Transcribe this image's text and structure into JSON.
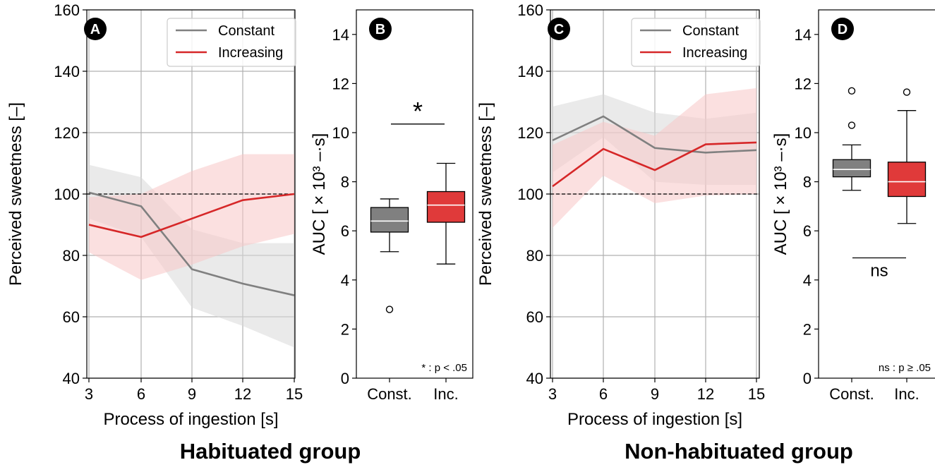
{
  "colors": {
    "constant": "#808080",
    "increasing": "#d62728",
    "constant_band": "#d9d9d9",
    "increasing_band": "#f7c6c6",
    "grid": "#b0b0b0",
    "box_const": "#808080",
    "box_inc": "#e03a3a"
  },
  "groups": [
    {
      "title": "Habituated group"
    },
    {
      "title": "Non-habituated group"
    }
  ],
  "chart_data": [
    {
      "panel": "A",
      "type": "line",
      "xlabel": "Process of ingestion [s]",
      "ylabel": "Perceived sweetness [–]",
      "x": [
        3,
        6,
        9,
        12,
        15
      ],
      "xticks": [
        "3",
        "6",
        "9",
        "12",
        "15"
      ],
      "yticks": [
        "40",
        "60",
        "80",
        "100",
        "120",
        "140",
        "160"
      ],
      "ylim": [
        40,
        160
      ],
      "reference_line": 100,
      "legend": {
        "position": "top-right",
        "entries": [
          "Constant",
          "Increasing"
        ]
      },
      "series": [
        {
          "name": "Constant",
          "values": [
            100.5,
            96,
            75.5,
            70.8,
            67
          ],
          "band_lower": [
            92,
            86,
            63,
            57,
            50
          ],
          "band_upper": [
            109.5,
            105.5,
            88.5,
            84,
            84
          ]
        },
        {
          "name": "Increasing",
          "values": [
            90,
            86,
            92,
            98,
            100
          ],
          "band_lower": [
            81,
            72,
            77,
            83,
            87
          ],
          "band_upper": [
            99,
            100,
            107.5,
            113,
            113
          ]
        }
      ]
    },
    {
      "panel": "B",
      "type": "box",
      "ylabel": "AUC [ × 10³ –·s]",
      "categories": [
        "Const.",
        "Inc."
      ],
      "yticks": [
        "0",
        "2",
        "4",
        "6",
        "8",
        "10",
        "12",
        "14"
      ],
      "ylim": [
        0,
        15
      ],
      "boxes": [
        {
          "whisker_low": 5.15,
          "q1": 5.95,
          "median": 6.4,
          "q3": 6.95,
          "whisker_high": 7.3,
          "outliers": [
            2.8
          ]
        },
        {
          "whisker_low": 4.65,
          "q1": 6.35,
          "median": 7.05,
          "q3": 7.6,
          "whisker_high": 8.75,
          "outliers": []
        }
      ],
      "significance": "*",
      "note": "* : p < .05"
    },
    {
      "panel": "C",
      "type": "line",
      "xlabel": "Process of ingestion [s]",
      "ylabel": "Perceived sweetness [–]",
      "x": [
        3,
        6,
        9,
        12,
        15
      ],
      "xticks": [
        "3",
        "6",
        "9",
        "12",
        "15"
      ],
      "yticks": [
        "40",
        "60",
        "80",
        "100",
        "120",
        "140",
        "160"
      ],
      "ylim": [
        40,
        160
      ],
      "reference_line": 100,
      "legend": {
        "position": "top-right",
        "entries": [
          "Constant",
          "Increasing"
        ]
      },
      "series": [
        {
          "name": "Constant",
          "values": [
            117.5,
            125.3,
            115,
            113.5,
            114.3
          ],
          "band_lower": [
            107,
            118.5,
            104,
            103,
            103
          ],
          "band_upper": [
            128.5,
            132.5,
            126.5,
            124.5,
            126.5
          ]
        },
        {
          "name": "Increasing",
          "values": [
            102.5,
            114.7,
            107.8,
            116.2,
            116.8
          ],
          "band_lower": [
            89,
            106,
            97,
            99.5,
            100
          ],
          "band_upper": [
            116,
            123.5,
            119,
            132.5,
            134.5
          ]
        }
      ]
    },
    {
      "panel": "D",
      "type": "box",
      "ylabel": "AUC [ × 10³ –·s]",
      "categories": [
        "Const.",
        "Inc."
      ],
      "yticks": [
        "0",
        "2",
        "4",
        "6",
        "8",
        "10",
        "12",
        "14"
      ],
      "ylim": [
        0,
        15
      ],
      "boxes": [
        {
          "whisker_low": 7.65,
          "q1": 8.2,
          "median": 8.5,
          "q3": 8.9,
          "whisker_high": 9.5,
          "outliers": [
            10.3,
            11.7
          ]
        },
        {
          "whisker_low": 6.3,
          "q1": 7.4,
          "median": 8.0,
          "q3": 8.8,
          "whisker_high": 10.9,
          "outliers": [
            11.65
          ]
        }
      ],
      "significance": "ns",
      "note": "ns : p ≥ .05"
    }
  ]
}
